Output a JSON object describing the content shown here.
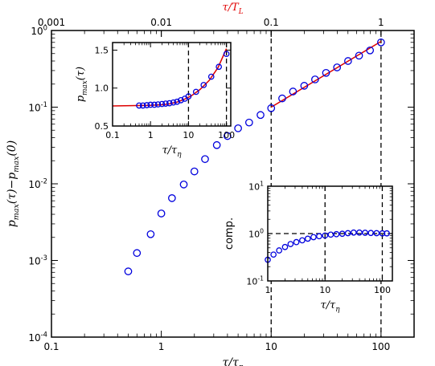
{
  "chart_data": [
    {
      "type": "scatter",
      "role": "main",
      "xscale": "log",
      "yscale": "log",
      "xlim": [
        0.1,
        200
      ],
      "ylim": [
        0.0001,
        1
      ],
      "xticks": [
        0.1,
        1,
        10,
        100
      ],
      "xtick_labels": [
        "0.1",
        "1",
        "10",
        "100"
      ],
      "yticks": [
        0.0001,
        0.001,
        0.01,
        0.1,
        1
      ],
      "ytick_labels": [
        [
          "10",
          "-4"
        ],
        [
          "10",
          "-3"
        ],
        [
          "10",
          "-2"
        ],
        [
          "10",
          "-1"
        ],
        [
          "10",
          "0"
        ]
      ],
      "xlabel": [
        "τ/τ",
        "η"
      ],
      "ylabel": [
        "p",
        "max",
        "(τ)−p",
        "max",
        "(0)"
      ],
      "top_axis": {
        "label": [
          "τ/T",
          "L"
        ],
        "label_color": "#e00000",
        "ticks": [
          0.001,
          0.01,
          0.1,
          1
        ],
        "tick_labels": [
          "0.001",
          "0.01",
          "0.1",
          "1"
        ],
        "factor_to_bottom": 100
      },
      "vlines": [
        10,
        100
      ],
      "marker_color": "#0000dd",
      "line_color": "#dd0000",
      "x": [
        0.5,
        0.6,
        0.8,
        1.0,
        1.25,
        1.6,
        2.0,
        2.5,
        3.2,
        4.0,
        5.0,
        6.3,
        8.0,
        10.0,
        12.6,
        15.8,
        20.0,
        25.1,
        31.6,
        39.8,
        50.1,
        63.1,
        79.4,
        100.0
      ],
      "y": [
        0.00072,
        0.00125,
        0.0022,
        0.0041,
        0.0065,
        0.0098,
        0.0145,
        0.021,
        0.032,
        0.042,
        0.053,
        0.063,
        0.079,
        0.097,
        0.13,
        0.16,
        0.19,
        0.23,
        0.28,
        0.33,
        0.4,
        0.47,
        0.55,
        0.7
      ],
      "fit_line": {
        "x": [
          10,
          100
        ],
        "y": [
          0.1,
          0.72
        ]
      }
    },
    {
      "type": "scatter",
      "role": "inset-top-left",
      "xscale": "log",
      "yscale": "linear",
      "xlim": [
        0.1,
        130
      ],
      "ylim": [
        0.5,
        1.6
      ],
      "xticks": [
        0.1,
        1,
        10,
        100
      ],
      "xtick_labels": [
        "0.1",
        "1",
        "10",
        "100"
      ],
      "yticks": [
        0.5,
        1.0,
        1.5
      ],
      "ytick_labels": [
        "0.5",
        "1.0",
        "1.5"
      ],
      "xlabel": [
        "τ/τ",
        "η"
      ],
      "ylabel": [
        "p",
        "max",
        "(τ)"
      ],
      "vlines": [
        10,
        100
      ],
      "x": [
        0.5,
        0.63,
        0.8,
        1.0,
        1.26,
        1.58,
        2.0,
        2.5,
        3.16,
        4.0,
        5.0,
        6.3,
        8.0,
        10.0,
        15.8,
        25.1,
        39.8,
        63.1,
        100.0
      ],
      "y": [
        0.77,
        0.77,
        0.775,
        0.78,
        0.78,
        0.785,
        0.79,
        0.795,
        0.8,
        0.81,
        0.82,
        0.84,
        0.86,
        0.89,
        0.95,
        1.04,
        1.15,
        1.28,
        1.45
      ],
      "curve": {
        "x": [
          0.1,
          0.3,
          1,
          2,
          3,
          5,
          8,
          12,
          20,
          35,
          60,
          100
        ],
        "y": [
          0.765,
          0.768,
          0.772,
          0.78,
          0.79,
          0.815,
          0.855,
          0.9,
          0.98,
          1.1,
          1.27,
          1.52
        ]
      }
    },
    {
      "type": "scatter",
      "role": "inset-bottom-right",
      "xscale": "log",
      "yscale": "log",
      "xlim": [
        1,
        150
      ],
      "ylim": [
        0.1,
        10
      ],
      "xticks": [
        1,
        10,
        100
      ],
      "xtick_labels": [
        "1",
        "10",
        "100"
      ],
      "yticks": [
        0.1,
        1,
        10
      ],
      "ytick_labels": [
        [
          "10",
          "-1"
        ],
        [
          "10",
          "0"
        ],
        [
          "10",
          "1"
        ]
      ],
      "xlabel": [
        "τ/τ",
        "η"
      ],
      "ylabel": "comp.",
      "vlines": [
        10,
        100
      ],
      "hline": 1,
      "x": [
        1.0,
        1.26,
        1.58,
        2.0,
        2.5,
        3.16,
        4.0,
        5.0,
        6.3,
        7.9,
        10.0,
        12.6,
        15.8,
        20.0,
        25.1,
        31.6,
        39.8,
        50.1,
        63.1,
        79.4,
        100.0,
        120.0
      ],
      "y": [
        0.28,
        0.36,
        0.44,
        0.52,
        0.6,
        0.66,
        0.72,
        0.78,
        0.84,
        0.88,
        0.91,
        0.95,
        0.97,
        0.99,
        1.02,
        1.05,
        1.05,
        1.04,
        1.03,
        1.02,
        1.01,
        1.01
      ]
    }
  ]
}
